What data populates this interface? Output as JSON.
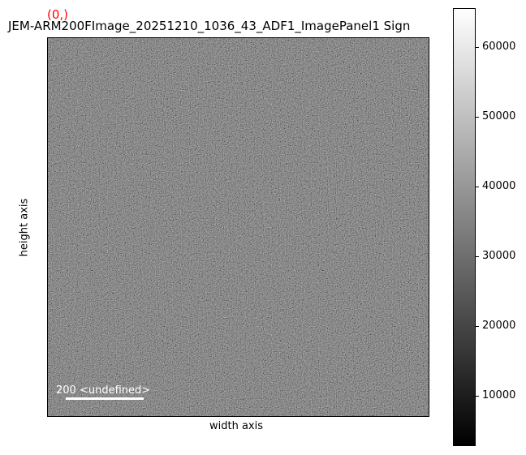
{
  "chart_data": {
    "type": "heatmap",
    "title": "JEM-ARM200FImage_20251210_1036_43_ADF1_ImagePanel1 Sign",
    "coordinate_label": "(0,)",
    "xlabel": "width axis",
    "ylabel": "height axis",
    "colormap": "gray",
    "colorbar": {
      "range": [
        2800,
        65535
      ],
      "ticks": [
        10000,
        20000,
        30000,
        40000,
        50000,
        60000
      ],
      "tick_labels": [
        "10000",
        "20000",
        "30000",
        "40000",
        "50000",
        "60000"
      ]
    },
    "scalebar": {
      "label": "200 <undefined>",
      "color": "#ffffff"
    },
    "coordinate_color": "#ff0000"
  }
}
